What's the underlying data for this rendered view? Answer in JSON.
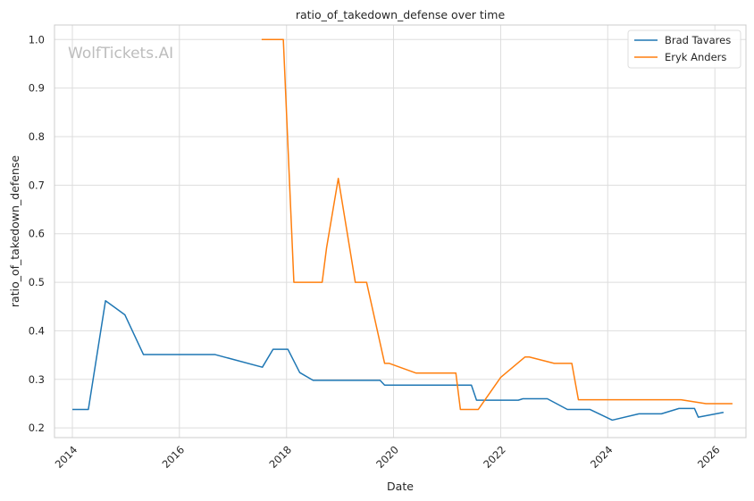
{
  "chart_data": {
    "type": "line",
    "title": "ratio_of_takedown_defense over time",
    "xlabel": "Date",
    "ylabel": "ratio_of_takedown_defense",
    "watermark": "WolfTickets.AI",
    "xlim": [
      "2013-09-01",
      "2026-08-01"
    ],
    "ylim": [
      0.18,
      1.03
    ],
    "x_ticks": [
      "2014",
      "2016",
      "2018",
      "2020",
      "2022",
      "2024",
      "2026"
    ],
    "y_ticks": [
      "0.2",
      "0.3",
      "0.4",
      "0.5",
      "0.6",
      "0.7",
      "0.8",
      "0.9",
      "1.0"
    ],
    "grid": true,
    "legend_position": "top-right",
    "series": [
      {
        "name": "Brad Tavares",
        "color": "#1f77b4",
        "points": [
          [
            "2014-01-01",
            0.238
          ],
          [
            "2014-04-20",
            0.238
          ],
          [
            "2014-08-15",
            0.462
          ],
          [
            "2014-12-25",
            0.433
          ],
          [
            "2015-05-01",
            0.351
          ],
          [
            "2016-09-01",
            0.351
          ],
          [
            "2017-07-20",
            0.325
          ],
          [
            "2017-10-01",
            0.362
          ],
          [
            "2018-01-10",
            0.362
          ],
          [
            "2018-04-01",
            0.314
          ],
          [
            "2018-07-01",
            0.298
          ],
          [
            "2019-10-01",
            0.298
          ],
          [
            "2019-11-01",
            0.288
          ],
          [
            "2021-06-15",
            0.288
          ],
          [
            "2021-07-20",
            0.257
          ],
          [
            "2022-05-01",
            0.257
          ],
          [
            "2022-06-01",
            0.26
          ],
          [
            "2022-11-15",
            0.26
          ],
          [
            "2023-04-01",
            0.238
          ],
          [
            "2023-09-01",
            0.238
          ],
          [
            "2024-02-01",
            0.216
          ],
          [
            "2024-08-01",
            0.229
          ],
          [
            "2025-01-01",
            0.229
          ],
          [
            "2025-05-01",
            0.24
          ],
          [
            "2025-08-15",
            0.24
          ],
          [
            "2025-09-10",
            0.222
          ],
          [
            "2026-03-01",
            0.232
          ]
        ]
      },
      {
        "name": "Eryk Anders",
        "color": "#ff7f0e",
        "points": [
          [
            "2017-07-15",
            1.0
          ],
          [
            "2017-12-10",
            1.0
          ],
          [
            "2018-02-20",
            0.5
          ],
          [
            "2018-09-01",
            0.5
          ],
          [
            "2018-10-01",
            0.571
          ],
          [
            "2018-12-20",
            0.714
          ],
          [
            "2019-04-15",
            0.5
          ],
          [
            "2019-07-01",
            0.5
          ],
          [
            "2019-11-01",
            0.333
          ],
          [
            "2019-12-01",
            0.333
          ],
          [
            "2020-06-01",
            0.313
          ],
          [
            "2021-03-01",
            0.313
          ],
          [
            "2021-04-01",
            0.238
          ],
          [
            "2021-08-01",
            0.238
          ],
          [
            "2022-01-01",
            0.304
          ],
          [
            "2022-06-15",
            0.346
          ],
          [
            "2022-07-15",
            0.346
          ],
          [
            "2023-01-01",
            0.333
          ],
          [
            "2023-05-01",
            0.333
          ],
          [
            "2023-06-15",
            0.258
          ],
          [
            "2025-05-15",
            0.258
          ],
          [
            "2025-11-01",
            0.25
          ],
          [
            "2026-05-01",
            0.25
          ]
        ]
      }
    ]
  }
}
